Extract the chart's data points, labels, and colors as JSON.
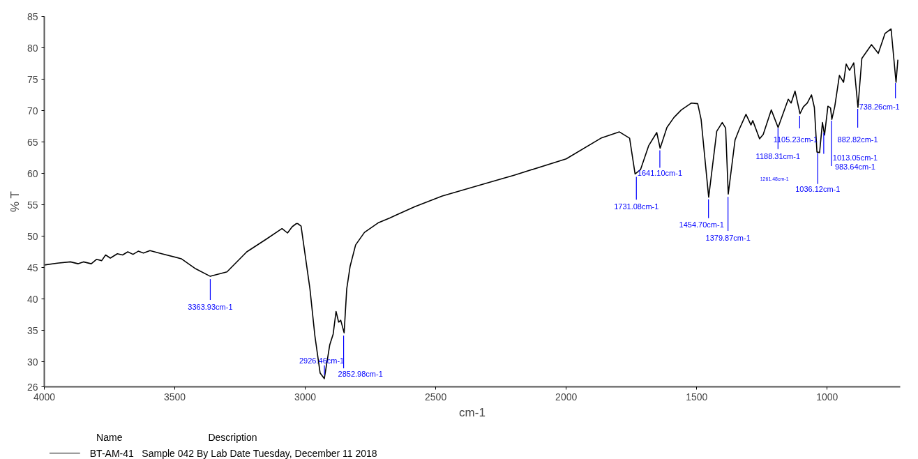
{
  "chart_data": {
    "type": "line",
    "xlabel": "cm-1",
    "ylabel": "% T",
    "xlim": [
      4000,
      720
    ],
    "xticks": [
      4000,
      3500,
      3000,
      2500,
      2000,
      1500,
      1000
    ],
    "ylim": [
      26,
      85
    ],
    "yticks": [
      26,
      30,
      35,
      40,
      45,
      50,
      55,
      60,
      65,
      70,
      75,
      80,
      85
    ],
    "grid": false,
    "legend": "bottom",
    "legend_title": "Name",
    "marker": "none",
    "line_style": "solid",
    "series": [
      {
        "name": "BT-AM-41",
        "color": "#000000",
        "x": [
          4000,
          3950,
          3900,
          3870,
          3850,
          3820,
          3800,
          3780,
          3765,
          3747,
          3720,
          3700,
          3680,
          3660,
          3640,
          3620,
          3595,
          3550,
          3475,
          3420,
          3364,
          3300,
          3224,
          3150,
          3089,
          3068,
          3050,
          3034,
          3029,
          3016,
          2982,
          2963,
          2943,
          2927,
          2906,
          2893,
          2882,
          2872,
          2864,
          2851,
          2841,
          2828,
          2807,
          2773,
          2721,
          2676,
          2650,
          2580,
          2475,
          2300,
          2200,
          2000,
          1867,
          1796,
          1757,
          1736,
          1715,
          1684,
          1653,
          1640,
          1614,
          1587,
          1559,
          1520,
          1496,
          1483,
          1470,
          1454,
          1423,
          1402,
          1389,
          1379,
          1353,
          1337,
          1311,
          1292,
          1285,
          1259,
          1245,
          1214,
          1188,
          1170,
          1149,
          1138,
          1123,
          1104,
          1091,
          1076,
          1060,
          1049,
          1039,
          1029,
          1018,
          1010,
          997,
          987,
          982,
          971,
          953,
          937,
          927,
          914,
          898,
          882,
          867,
          830,
          804,
          778,
          755,
          736,
          729
        ],
        "values": [
          45.4,
          45.7,
          45.9,
          45.6,
          45.9,
          45.6,
          46.3,
          46.1,
          47.0,
          46.5,
          47.2,
          47.0,
          47.5,
          47.1,
          47.6,
          47.3,
          47.7,
          47.2,
          46.4,
          44.8,
          43.6,
          44.3,
          47.5,
          49.5,
          51.2,
          50.5,
          51.5,
          52.0,
          52.0,
          51.6,
          41.6,
          34.1,
          28.2,
          27.3,
          32.7,
          34.4,
          38.0,
          36.3,
          36.6,
          34.6,
          41.6,
          45.2,
          48.6,
          50.6,
          52.1,
          52.9,
          53.4,
          54.7,
          56.4,
          58.5,
          59.7,
          62.3,
          65.6,
          66.6,
          65.6,
          59.9,
          60.6,
          64.4,
          66.5,
          64.0,
          67.3,
          68.9,
          70.1,
          71.2,
          71.1,
          68.6,
          63.0,
          56.2,
          66.7,
          68.1,
          67.2,
          56.7,
          65.3,
          67.0,
          69.4,
          67.7,
          68.4,
          65.5,
          66.2,
          70.1,
          67.3,
          69.4,
          71.8,
          71.2,
          73.1,
          69.5,
          70.6,
          71.2,
          72.5,
          70.5,
          63.4,
          63.3,
          68.1,
          66.1,
          70.7,
          70.4,
          68.6,
          70.6,
          75.6,
          74.5,
          77.4,
          76.4,
          77.6,
          70.5,
          78.3,
          80.5,
          79.1,
          82.3,
          83.0,
          74.5,
          78.1
        ]
      }
    ],
    "annotations": [
      {
        "text": "3363.93cm-1",
        "x": 3363.93,
        "y": 43.6
      },
      {
        "text": "2926.46cm-1",
        "x": 2926.46,
        "y": 27.3
      },
      {
        "text": "2852.98cm-1",
        "x": 2852.98,
        "y": 34.6
      },
      {
        "text": "1731.08cm-1",
        "x": 1731.08,
        "y": 59.9
      },
      {
        "text": "1641.10cm-1",
        "x": 1641.1,
        "y": 64.0
      },
      {
        "text": "1454.70cm-1",
        "x": 1454.7,
        "y": 56.2
      },
      {
        "text": "1379.87cm-1",
        "x": 1379.87,
        "y": 56.7
      },
      "1261.48cm-1",
      {
        "text": "1188.31cm-1",
        "x": 1188.31,
        "y": 67.3
      },
      {
        "text": "1105.23cm-1",
        "x": 1105.23,
        "y": 69.5
      },
      {
        "text": "1036.12cm-1",
        "x": 1036.12,
        "y": 63.4
      },
      {
        "text": "1013.05cm-1",
        "x": 1013.05,
        "y": 66.1
      },
      {
        "text": "983.64cm-1",
        "x": 983.64,
        "y": 68.6
      },
      {
        "text": "882.82cm-1",
        "x": 882.82,
        "y": 70.5
      },
      {
        "text": "738.26cm-1",
        "x": 738.26,
        "y": 74.5
      },
      "Description",
      "Sample 042 By Lab Date Tuesday, December 11 2018"
    ]
  }
}
